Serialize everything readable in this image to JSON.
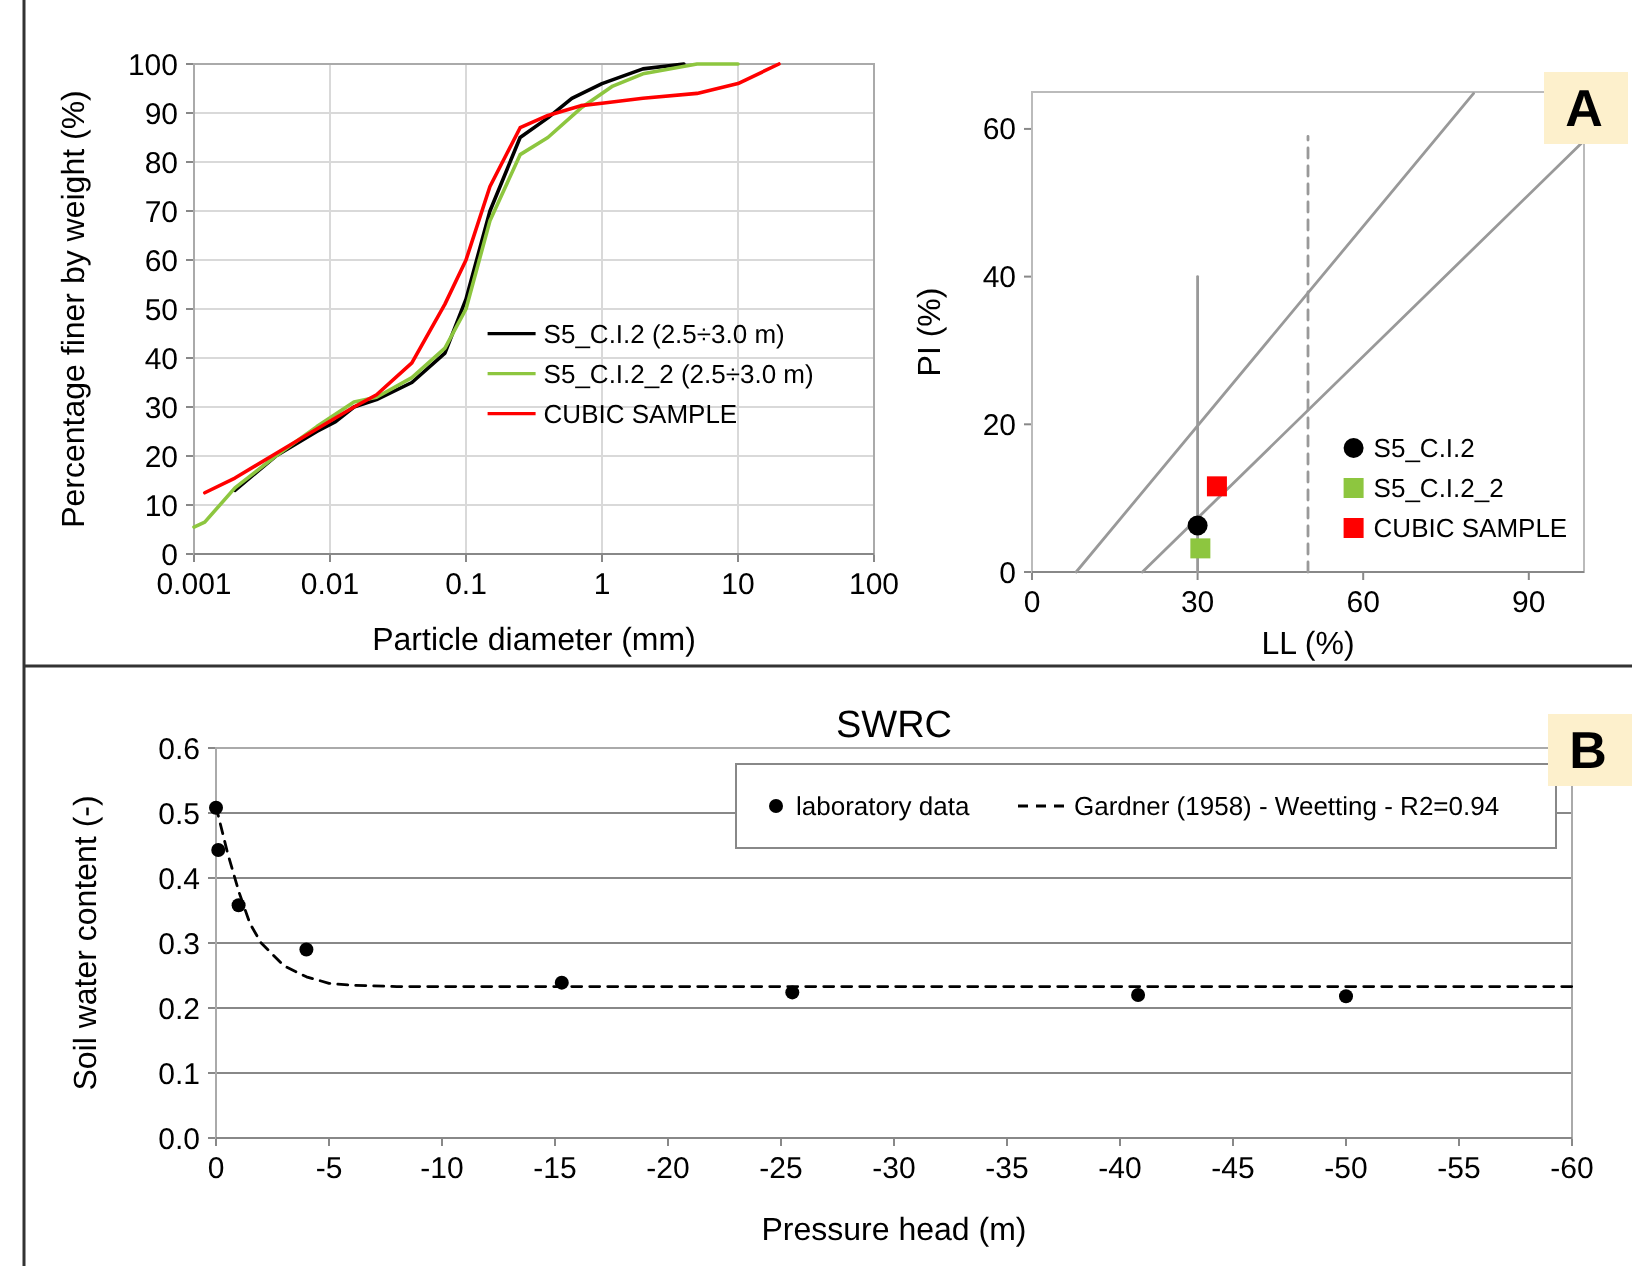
{
  "chart_data": [
    {
      "type": "line",
      "xlabel": "Particle diameter (mm)",
      "ylabel": "Percentage finer by weight (%)",
      "log": "x",
      "xlim": [
        0.001,
        100
      ],
      "xticks": [
        0.001,
        0.01,
        0.1,
        1,
        10,
        100
      ],
      "ylim": [
        0,
        100
      ],
      "yticks": [
        0,
        10,
        20,
        30,
        40,
        50,
        60,
        70,
        80,
        90,
        100
      ],
      "grid": true,
      "legend": "right",
      "series": [
        {
          "name": "S5_C.I.2 (2.5÷3.0 m)",
          "color": "#000000",
          "x": [
            0.002,
            0.004,
            0.008,
            0.011,
            0.015,
            0.022,
            0.04,
            0.07,
            0.1,
            0.15,
            0.25,
            0.4,
            0.6,
            1,
            2,
            4
          ],
          "values": [
            13,
            20,
            25,
            27,
            30,
            31.5,
            35,
            41,
            52,
            70,
            85,
            89,
            93,
            96,
            99,
            100
          ]
        },
        {
          "name": "S5_C.I.2_2 (2.5÷3.0 m)",
          "color": "#8dc63f",
          "x": [
            0.001,
            0.0012,
            0.002,
            0.004,
            0.008,
            0.015,
            0.022,
            0.04,
            0.07,
            0.1,
            0.15,
            0.25,
            0.4,
            0.7,
            1.2,
            2,
            5,
            10
          ],
          "values": [
            5.5,
            6.5,
            13.5,
            20,
            26,
            31,
            32,
            36,
            42,
            50,
            68,
            81.5,
            85,
            91,
            95.5,
            98,
            100,
            100
          ]
        },
        {
          "name": "CUBIC SAMPLE",
          "color": "#ff0000",
          "x": [
            0.0012,
            0.002,
            0.004,
            0.008,
            0.015,
            0.022,
            0.04,
            0.07,
            0.1,
            0.15,
            0.25,
            0.4,
            0.7,
            1,
            2,
            5,
            10,
            20
          ],
          "values": [
            12.5,
            15.5,
            20.5,
            25.5,
            30,
            32.5,
            39,
            51,
            60,
            75,
            87,
            89.5,
            91.5,
            92,
            93,
            94,
            96,
            100
          ]
        }
      ]
    },
    {
      "type": "scatter",
      "xlabel": "LL (%)",
      "ylabel": "PI (%)",
      "xlim": [
        0,
        100
      ],
      "xticks": [
        0,
        30,
        60,
        90
      ],
      "ylim": [
        0,
        65
      ],
      "yticks": [
        0,
        20,
        40,
        60
      ],
      "grid": false,
      "legend": "bottom right",
      "annotations": [
        "A"
      ],
      "series": [
        {
          "type": "line",
          "color": "#999999",
          "line_style": "solid",
          "x": [
            8,
            80
          ],
          "values": [
            0,
            64.8
          ]
        },
        {
          "type": "line",
          "color": "#999999",
          "line_style": "solid",
          "x": [
            20,
            100
          ],
          "values": [
            0,
            58.4
          ]
        },
        {
          "type": "line",
          "color": "#999999",
          "line_style": "solid",
          "x": [
            30,
            30
          ],
          "values": [
            0,
            40
          ]
        },
        {
          "type": "line",
          "color": "#999999",
          "line_style": "dashed",
          "x": [
            50,
            50
          ],
          "values": [
            0,
            59
          ]
        },
        {
          "name": "S5_C.I.2",
          "color": "#000000",
          "marker": "circle",
          "x": [
            30
          ],
          "values": [
            6.3
          ]
        },
        {
          "name": "S5_C.I.2_2",
          "color": "#8dc63f",
          "marker": "square",
          "x": [
            30.5
          ],
          "values": [
            3.2
          ]
        },
        {
          "name": "CUBIC SAMPLE",
          "color": "#ff0000",
          "marker": "square",
          "x": [
            33.5
          ],
          "values": [
            11.6
          ]
        }
      ]
    },
    {
      "type": "scatter",
      "title": "SWRC",
      "xlabel": "Pressure head (m)",
      "ylabel": "Soil water content (-)",
      "xlim": [
        0,
        -60
      ],
      "xticks": [
        0,
        -5,
        -10,
        -15,
        -20,
        -25,
        -30,
        -35,
        -40,
        -45,
        -50,
        -55,
        -60
      ],
      "ylim": [
        0,
        0.6
      ],
      "yticks": [
        {
          "value": 0,
          "label": "0.0"
        },
        0.1,
        0.2,
        0.3,
        0.4,
        0.5,
        0.6
      ],
      "grid": "y",
      "legend": "top right",
      "annotations": [
        "B"
      ],
      "series": [
        {
          "name": "laboratory data",
          "color": "#000000",
          "marker": "circle",
          "x": [
            0,
            -0.1,
            -1,
            -4,
            -15.3,
            -25.5,
            -40.8,
            -50
          ],
          "values": [
            0.508,
            0.443,
            0.358,
            0.29,
            0.239,
            0.224,
            0.22,
            0.218
          ]
        },
        {
          "type": "line",
          "name": "Gardner (1958) - Weetting - R2=0.94",
          "color": "#000000",
          "line_style": "dashed",
          "x": [
            0,
            -0.5,
            -1,
            -1.5,
            -2,
            -3,
            -4,
            -5,
            -6,
            -8,
            -60
          ],
          "values": [
            0.51,
            0.44,
            0.38,
            0.33,
            0.3,
            0.265,
            0.248,
            0.238,
            0.235,
            0.233,
            0.233
          ]
        }
      ]
    }
  ]
}
